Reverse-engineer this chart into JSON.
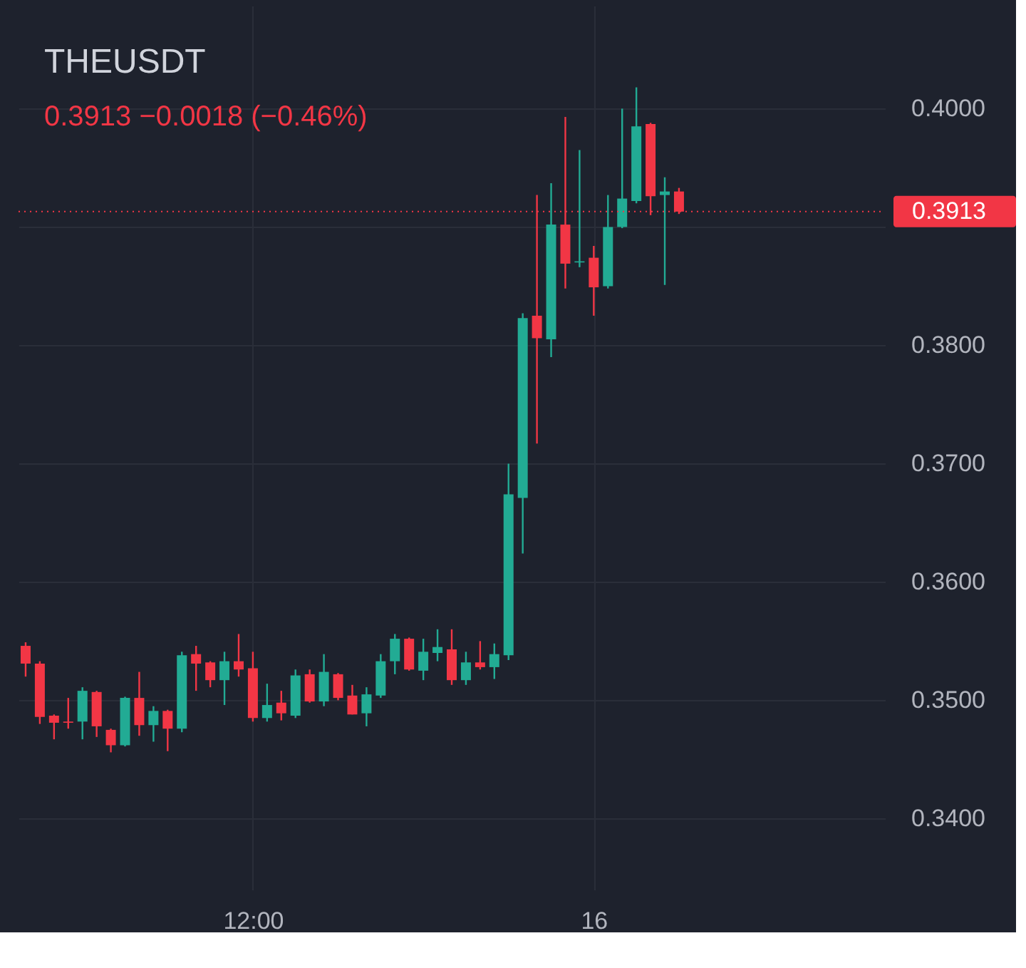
{
  "chart_data": {
    "type": "candlestick",
    "title": "THEUSDT",
    "subtitle": "0.3913  −0.0018 (−0.46%)",
    "categories": [
      null,
      null,
      null,
      null,
      null,
      null,
      null,
      null,
      null,
      null,
      null,
      null,
      null,
      null,
      null,
      null,
      "12:00",
      null,
      null,
      null,
      null,
      null,
      null,
      null,
      null,
      null,
      null,
      null,
      null,
      null,
      null,
      null,
      null,
      null,
      null,
      null,
      null,
      null,
      null,
      null,
      "16",
      null,
      null,
      null,
      null,
      null,
      null,
      null,
      null,
      null,
      null,
      null,
      null,
      null,
      null,
      null,
      null,
      null,
      null,
      null,
      null
    ],
    "ohlc": [
      [
        0.3546,
        0.3549,
        0.352,
        0.3531
      ],
      [
        0.3531,
        0.3533,
        0.348,
        0.3486
      ],
      [
        0.3487,
        0.3488,
        0.3467,
        0.3481
      ],
      [
        0.3482,
        0.3502,
        0.3476,
        0.3481
      ],
      [
        0.3482,
        0.3511,
        0.3467,
        0.3508
      ],
      [
        0.3507,
        0.3508,
        0.3469,
        0.3478
      ],
      [
        0.3475,
        0.3476,
        0.3456,
        0.3462
      ],
      [
        0.3462,
        0.3503,
        0.3461,
        0.3502
      ],
      [
        0.3502,
        0.3524,
        0.347,
        0.3479
      ],
      [
        0.3479,
        0.3495,
        0.3465,
        0.3491
      ],
      [
        0.3491,
        0.3492,
        0.3457,
        0.3476
      ],
      [
        0.3476,
        0.3541,
        0.3473,
        0.3538
      ],
      [
        0.3539,
        0.3546,
        0.3508,
        0.3531
      ],
      [
        0.3532,
        0.3533,
        0.3511,
        0.3517
      ],
      [
        0.3517,
        0.3541,
        0.3496,
        0.3533
      ],
      [
        0.3533,
        0.3556,
        0.352,
        0.3526
      ],
      [
        0.3527,
        0.3541,
        0.3482,
        0.3485
      ],
      [
        0.3485,
        0.3514,
        0.3482,
        0.3496
      ],
      [
        0.3498,
        0.3508,
        0.3483,
        0.3489
      ],
      [
        0.3487,
        0.3526,
        0.3485,
        0.3521
      ],
      [
        0.3522,
        0.3526,
        0.3498,
        0.3499
      ],
      [
        0.3499,
        0.3539,
        0.3495,
        0.3524
      ],
      [
        0.3522,
        0.3523,
        0.35,
        0.3502
      ],
      [
        0.3504,
        0.3513,
        0.3488,
        0.3488
      ],
      [
        0.3489,
        0.3511,
        0.3478,
        0.3505
      ],
      [
        0.3504,
        0.3539,
        0.3502,
        0.3533
      ],
      [
        0.3533,
        0.3556,
        0.3522,
        0.3552
      ],
      [
        0.3552,
        0.3553,
        0.3525,
        0.3526
      ],
      [
        0.3525,
        0.3552,
        0.3517,
        0.3541
      ],
      [
        0.354,
        0.356,
        0.3533,
        0.3545
      ],
      [
        0.3543,
        0.356,
        0.3513,
        0.3517
      ],
      [
        0.3517,
        0.3541,
        0.3513,
        0.3532
      ],
      [
        0.3532,
        0.355,
        0.3526,
        0.3528
      ],
      [
        0.3528,
        0.3548,
        0.3518,
        0.3539
      ],
      [
        0.3538,
        0.37,
        0.3534,
        0.3674
      ],
      [
        0.3671,
        0.3827,
        0.3624,
        0.3823
      ],
      [
        0.3825,
        0.3927,
        0.3717,
        0.3806
      ],
      [
        0.3805,
        0.3937,
        0.379,
        0.3902
      ],
      [
        0.3902,
        0.3993,
        0.3848,
        0.3869
      ],
      [
        0.387,
        0.3965,
        0.3866,
        0.3871
      ],
      [
        0.3874,
        0.3884,
        0.3825,
        0.3849
      ],
      [
        0.385,
        0.3927,
        0.3848,
        0.39
      ],
      [
        0.39,
        0.4,
        0.3899,
        0.3924
      ],
      [
        0.3922,
        0.4018,
        0.392,
        0.3985
      ],
      [
        0.3987,
        0.3988,
        0.391,
        0.3926
      ],
      [
        0.3927,
        0.3942,
        0.3851,
        0.393
      ],
      [
        0.393,
        0.3933,
        0.3911,
        0.3913
      ],
      null,
      null,
      null,
      null,
      null,
      null,
      null,
      null,
      null,
      null,
      null,
      null,
      null,
      null
    ],
    "colors": [
      "#f23645",
      "#f23645",
      "#f23645",
      "#f23645",
      "#22ab94",
      "#f23645",
      "#f23645",
      "#22ab94",
      "#f23645",
      "#22ab94",
      "#f23645",
      "#22ab94",
      "#f23645",
      "#f23645",
      "#22ab94",
      "#f23645",
      "#f23645",
      "#22ab94",
      "#f23645",
      "#22ab94",
      "#f23645",
      "#22ab94",
      "#f23645",
      "#f23645",
      "#22ab94",
      "#22ab94",
      "#22ab94",
      "#f23645",
      "#22ab94",
      "#22ab94",
      "#f23645",
      "#22ab94",
      "#f23645",
      "#22ab94",
      "#22ab94",
      "#22ab94",
      "#f23645",
      "#22ab94",
      "#f23645",
      "#22ab94",
      "#f23645",
      "#22ab94",
      "#22ab94",
      "#22ab94",
      "#f23645",
      "#22ab94",
      "#f23645",
      null,
      null,
      null,
      null,
      null,
      null,
      null,
      null,
      null,
      null,
      null,
      null,
      null,
      null
    ],
    "ylim": [
      0.334,
      0.4087
    ],
    "yticks": [
      {
        "value": 0.34,
        "label": "0.3400"
      },
      {
        "value": 0.35,
        "label": "0.3500"
      },
      {
        "value": 0.36,
        "label": "0.3600"
      },
      {
        "value": 0.37,
        "label": "0.3700"
      },
      {
        "value": 0.38,
        "label": "0.3800"
      },
      {
        "value": 0.39,
        "label": null
      },
      {
        "value": 0.4,
        "label": "0.4000"
      }
    ],
    "ref_lines": [
      {
        "axis": "y",
        "value": 0.3913,
        "label": "0.3913",
        "color": "#f23645",
        "line_style": "dotted"
      }
    ],
    "grid": true
  }
}
